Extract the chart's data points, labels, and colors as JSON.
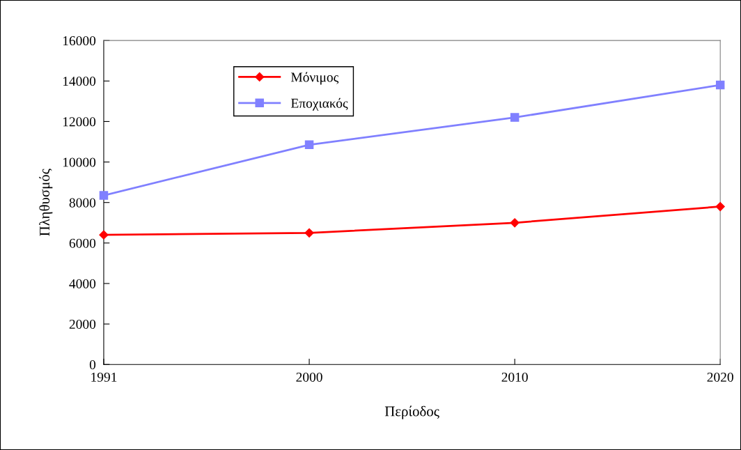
{
  "chart_data": {
    "type": "line",
    "xlabel": "Περίοδος",
    "ylabel": "Πληθυσμός",
    "categories": [
      "1991",
      "2000",
      "2010",
      "2020"
    ],
    "series": [
      {
        "name": "Μόνιμος",
        "color": "#ff0000",
        "values": [
          6400,
          6500,
          7000,
          7800
        ],
        "marker": "diamond"
      },
      {
        "name": "Εποχιακός",
        "color": "#8080ff",
        "values": [
          8350,
          10850,
          12200,
          13800
        ],
        "marker": "square"
      }
    ],
    "ylim": [
      0,
      16000
    ],
    "yticks": [
      0,
      2000,
      4000,
      6000,
      8000,
      10000,
      12000,
      14000,
      16000
    ],
    "grid": false,
    "legend": "top left",
    "line_style": "solid"
  }
}
